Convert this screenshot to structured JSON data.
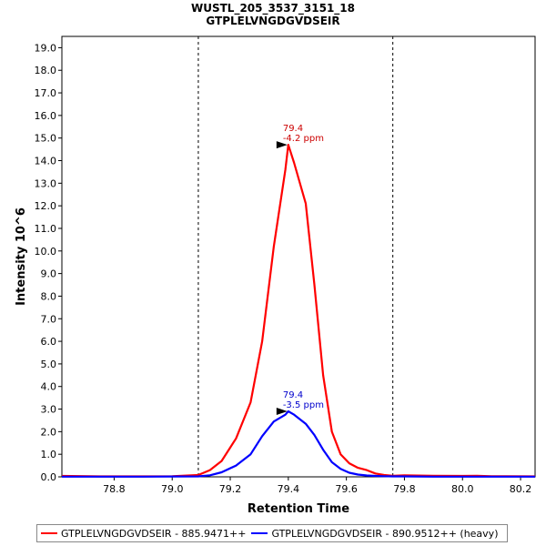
{
  "chart_data": {
    "type": "line",
    "title": "WUSTL_205_3537_3151_18",
    "subtitle": "GTPLELVNGDGVDSEIR",
    "xlabel": "Retention Time",
    "ylabel": "Intensity 10^6",
    "xlim": [
      78.62,
      80.25
    ],
    "ylim": [
      0,
      19.5
    ],
    "x_ticks": [
      "78.8",
      "79.0",
      "79.2",
      "79.4",
      "79.6",
      "79.8",
      "80.0",
      "80.2"
    ],
    "y_ticks": [
      "0.0",
      "1.0",
      "2.0",
      "3.0",
      "4.0",
      "5.0",
      "6.0",
      "7.0",
      "8.0",
      "9.0",
      "10.0",
      "11.0",
      "12.0",
      "13.0",
      "14.0",
      "15.0",
      "16.0",
      "17.0",
      "18.0",
      "19.0"
    ],
    "boundaries": [
      79.09,
      79.76
    ],
    "series": [
      {
        "name": "GTPLELVNGDGVDSEIR - 885.9471++",
        "color": "#ff0000",
        "x": [
          78.62,
          78.75,
          78.9,
          79.0,
          79.09,
          79.13,
          79.17,
          79.22,
          79.27,
          79.31,
          79.35,
          79.39,
          79.4,
          79.42,
          79.46,
          79.49,
          79.52,
          79.55,
          79.58,
          79.61,
          79.64,
          79.67,
          79.7,
          79.73,
          79.76,
          79.8,
          79.9,
          80.0,
          80.05,
          80.1,
          80.15,
          80.25
        ],
        "y": [
          0.04,
          0.02,
          0.02,
          0.03,
          0.08,
          0.3,
          0.7,
          1.7,
          3.3,
          6.0,
          10.2,
          13.6,
          14.7,
          13.9,
          12.1,
          8.5,
          4.5,
          2.0,
          1.0,
          0.6,
          0.4,
          0.3,
          0.15,
          0.08,
          0.05,
          0.07,
          0.05,
          0.04,
          0.05,
          0.03,
          0.03,
          0.02
        ]
      },
      {
        "name": "GTPLELVNGDGVDSEIR - 890.9512++ (heavy)",
        "color": "#0000ff",
        "x": [
          78.62,
          78.9,
          79.09,
          79.13,
          79.17,
          79.22,
          79.27,
          79.31,
          79.35,
          79.39,
          79.4,
          79.42,
          79.46,
          79.49,
          79.52,
          79.55,
          79.58,
          79.61,
          79.64,
          79.67,
          79.7,
          79.73,
          79.76,
          79.8,
          79.9,
          80.0,
          80.1,
          80.25
        ],
        "y": [
          0.01,
          0.01,
          0.02,
          0.07,
          0.2,
          0.5,
          1.0,
          1.8,
          2.45,
          2.75,
          2.9,
          2.75,
          2.35,
          1.85,
          1.2,
          0.65,
          0.35,
          0.18,
          0.1,
          0.06,
          0.04,
          0.03,
          0.02,
          0.02,
          0.01,
          0.01,
          0.01,
          0.01
        ]
      }
    ],
    "annotations": [
      {
        "series": 0,
        "x": 79.4,
        "y": 14.7,
        "rt": "79.4",
        "ppm": "-4.2 ppm",
        "color": "#cc0000"
      },
      {
        "series": 1,
        "x": 79.4,
        "y": 2.9,
        "rt": "79.4",
        "ppm": "-3.5 ppm",
        "color": "#0000cc"
      }
    ]
  }
}
